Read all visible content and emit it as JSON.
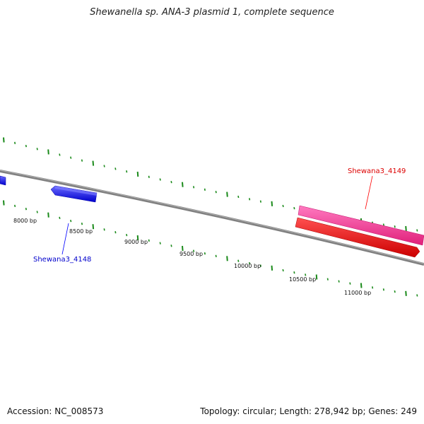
{
  "title": "Shewanella sp. ANA-3 plasmid 1, complete sequence",
  "footer": {
    "accession": "Accession: NC_008573",
    "summary": "Topology: circular; Length: 278,942 bp; Genes: 249"
  },
  "scale_labels": [
    "8000 bp",
    "8500 bp",
    "9000 bp",
    "9500 bp",
    "10000 bp",
    "10500 bp",
    "11000 bp"
  ],
  "genes": [
    {
      "name": "Shewana3_4148",
      "strand": "reverse",
      "color": "#0000ff"
    },
    {
      "name": "Shewana3_4149",
      "strand": "forward",
      "color": "#ff3399"
    },
    {
      "name": "",
      "strand": "forward",
      "color": "#ff0000"
    }
  ],
  "colors": {
    "backbone": "#808080",
    "tick": "#1a8a1a",
    "gene_4148": "#0000ff",
    "gene_4149": "#ff3399",
    "gene_red": "#ff0000"
  }
}
